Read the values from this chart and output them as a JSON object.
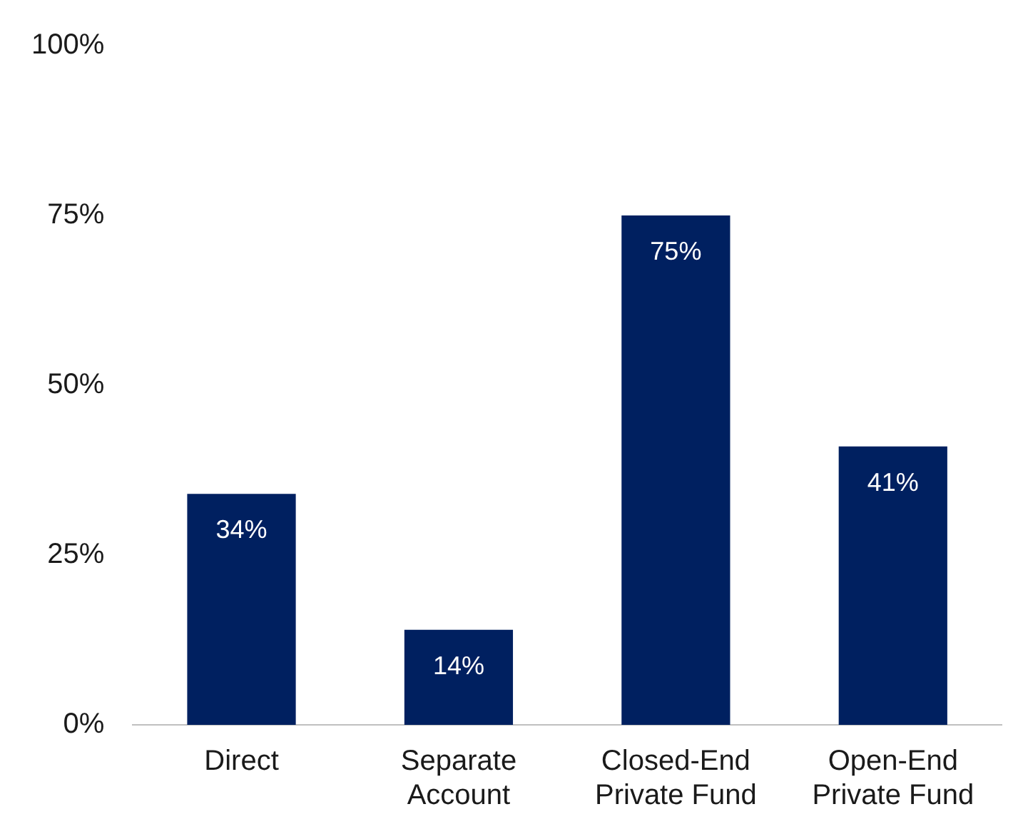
{
  "chart_data": {
    "type": "bar",
    "categories": [
      "Direct",
      "Separate Account",
      "Closed-End Private Fund",
      "Open-End Private Fund"
    ],
    "values": [
      34,
      14,
      75,
      41
    ],
    "color": "#002060",
    "value_labels": [
      "34%",
      "14%",
      "75%",
      "41%"
    ],
    "ylim": [
      0,
      100
    ],
    "yticks": [
      {
        "value": 0,
        "label": "0%"
      },
      {
        "value": 25,
        "label": "25%"
      },
      {
        "value": 50,
        "label": "50%"
      },
      {
        "value": 75,
        "label": "75%"
      },
      {
        "value": 100,
        "label": "100%"
      }
    ],
    "grid": false,
    "legend": false
  }
}
